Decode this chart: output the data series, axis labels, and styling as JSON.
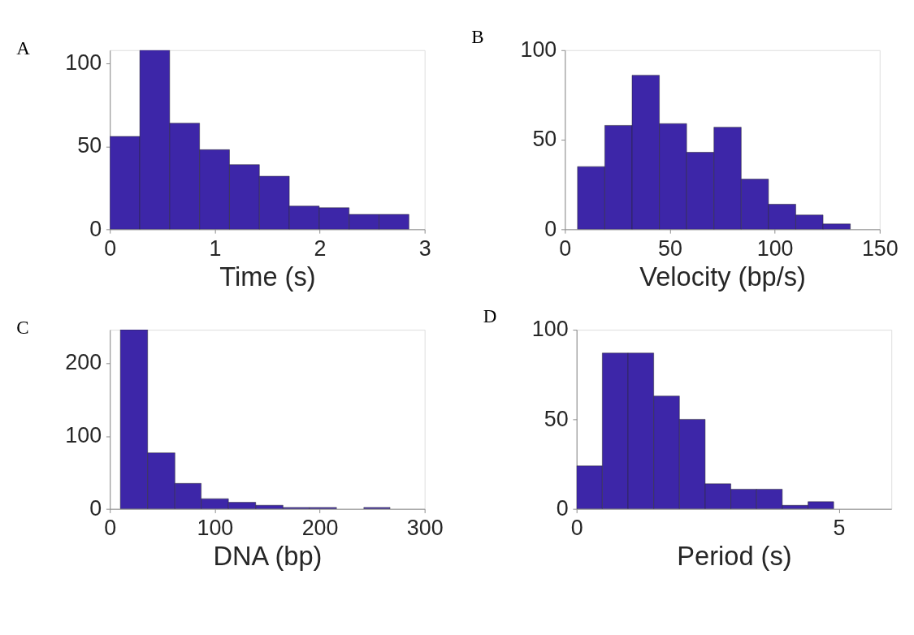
{
  "chart_data": [
    {
      "type": "histogram",
      "title": "A",
      "xlabel": "Time (s)",
      "color": "#3d26a8",
      "bins": [
        0,
        0.285,
        0.57,
        0.855,
        1.14,
        1.425,
        1.71,
        1.995,
        2.28,
        2.565,
        2.85
      ],
      "values": [
        56,
        108,
        64,
        48,
        39,
        32,
        14,
        13,
        9,
        9
      ],
      "xlim": [
        0,
        3
      ],
      "xticks": [
        0,
        1,
        2,
        3
      ],
      "ylim": [
        0,
        108
      ],
      "yticks": [
        0,
        50,
        100
      ],
      "grid": false
    },
    {
      "type": "histogram",
      "title": "B",
      "xlabel": "Velocity (bp/s)",
      "color": "#3d26a8",
      "bins": [
        6,
        19,
        32,
        45,
        58,
        71,
        84,
        97,
        110,
        123,
        136
      ],
      "values": [
        35,
        58,
        86,
        59,
        43,
        57,
        28,
        14,
        8,
        3
      ],
      "xlim": [
        0,
        150
      ],
      "xticks": [
        0,
        50,
        100,
        150
      ],
      "ylim": [
        0,
        100
      ],
      "yticks": [
        0,
        50,
        100
      ],
      "grid": false
    },
    {
      "type": "histogram",
      "title": "C",
      "xlabel": "DNA (bp)",
      "color": "#3d26a8",
      "bins": [
        10,
        36,
        62,
        87,
        113,
        139,
        165,
        190,
        216,
        242,
        267
      ],
      "values": [
        246,
        77,
        35,
        14,
        9,
        5,
        2,
        2,
        0,
        2
      ],
      "xlim": [
        0,
        300
      ],
      "xticks": [
        0,
        100,
        200,
        300
      ],
      "ylim": [
        0,
        246
      ],
      "yticks": [
        0,
        100,
        200
      ],
      "grid": false
    },
    {
      "type": "histogram",
      "title": "D",
      "xlabel": "Period (s)",
      "color": "#3d26a8",
      "bins": [
        0,
        0.49,
        0.98,
        1.47,
        1.96,
        2.45,
        2.94,
        3.43,
        3.92,
        4.41,
        4.9
      ],
      "values": [
        24,
        87,
        87,
        63,
        50,
        14,
        11,
        11,
        2,
        4
      ],
      "xlim": [
        0,
        6
      ],
      "xticks": [
        0,
        5
      ],
      "ylim": [
        0,
        100
      ],
      "yticks": [
        0,
        50,
        100
      ],
      "grid": false
    }
  ]
}
